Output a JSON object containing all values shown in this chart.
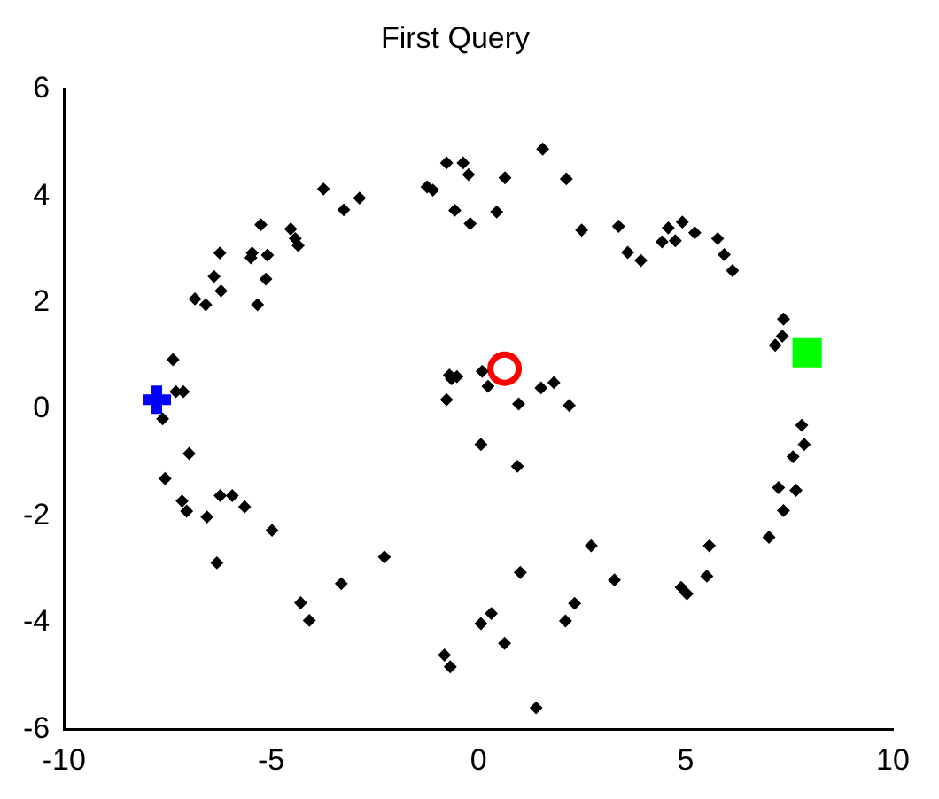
{
  "chart_data": {
    "type": "scatter",
    "title": "First Query",
    "xlim": [
      -10,
      10
    ],
    "xticks": [
      -10,
      -5,
      0,
      5,
      10
    ],
    "ylim": [
      -6,
      6
    ],
    "yticks": [
      -6,
      -4,
      -2,
      0,
      2,
      4,
      6
    ],
    "grid": false,
    "legend": false,
    "series": [
      {
        "color": "#000000",
        "marker": "diamond",
        "x": [
          -7.37,
          -7.3,
          -7.12,
          -7.62,
          -6.84,
          -6.58,
          -6.38,
          -6.21,
          -6.24,
          -5.46,
          -5.49,
          -5.09,
          -5.13,
          -5.33,
          -5.25,
          -4.53,
          -4.42,
          -4.35,
          -3.74,
          -3.25,
          -2.87,
          -1.24,
          -1.1,
          -0.77,
          -0.37,
          -0.24,
          -0.57,
          -0.2,
          0.44,
          -0.7,
          -0.52,
          -0.65,
          0.09,
          0.23,
          -0.77,
          0.64,
          1.55,
          2.12,
          2.49,
          3.38,
          3.6,
          3.92,
          4.43,
          4.58,
          4.75,
          4.92,
          5.22,
          5.77,
          5.93,
          6.13,
          7.36,
          7.33,
          7.16,
          1.51,
          1.82,
          0.97,
          2.19,
          -6.98,
          -7.56,
          -7.15,
          -7.04,
          -6.55,
          -6.23,
          -5.94,
          -5.64,
          -6.31,
          -4.98,
          -4.29,
          -4.08,
          -3.31,
          -2.27,
          0.06,
          -0.82,
          -0.68,
          0.06,
          0.31,
          0.94,
          7.8,
          7.86,
          7.59,
          7.24,
          7.66,
          7.36,
          7.01,
          2.72,
          5.57,
          5.51,
          4.89,
          5.03,
          3.28,
          1.01,
          2.32,
          2.1,
          0.63,
          1.39
        ],
        "values": [
          0.93,
          0.33,
          0.33,
          -0.18,
          2.07,
          1.96,
          2.49,
          2.22,
          2.93,
          2.93,
          2.84,
          2.89,
          2.44,
          1.96,
          3.46,
          3.38,
          3.2,
          3.07,
          4.13,
          3.74,
          3.96,
          4.17,
          4.11,
          4.62,
          4.62,
          4.4,
          3.73,
          3.48,
          3.7,
          0.64,
          0.61,
          0.57,
          0.71,
          0.43,
          0.18,
          4.34,
          4.88,
          4.32,
          3.36,
          3.43,
          2.94,
          2.79,
          3.14,
          3.4,
          3.16,
          3.51,
          3.31,
          3.2,
          2.9,
          2.6,
          1.69,
          1.37,
          1.2,
          0.4,
          0.5,
          0.1,
          0.07,
          -0.83,
          -1.3,
          -1.72,
          -1.91,
          -2.02,
          -1.62,
          -1.62,
          -1.83,
          -2.88,
          -2.27,
          -3.63,
          -3.96,
          -3.27,
          -2.77,
          -0.66,
          -4.61,
          -4.83,
          -4.02,
          -3.83,
          -1.07,
          -0.3,
          -0.66,
          -0.89,
          -1.47,
          -1.52,
          -1.9,
          -2.4,
          -2.56,
          -2.56,
          -3.13,
          -3.34,
          -3.46,
          -3.2,
          -3.06,
          -3.64,
          -3.97,
          -4.39,
          -5.6
        ]
      },
      {
        "color": "#0000ff",
        "marker": "cross",
        "x": [
          -7.76
        ],
        "values": [
          0.18
        ]
      },
      {
        "color": "#ff0000",
        "marker": "circle",
        "x": [
          0.63
        ],
        "values": [
          0.76
        ]
      },
      {
        "color": "#00ff00",
        "marker": "square",
        "x": [
          7.93
        ],
        "values": [
          1.06
        ]
      }
    ]
  }
}
